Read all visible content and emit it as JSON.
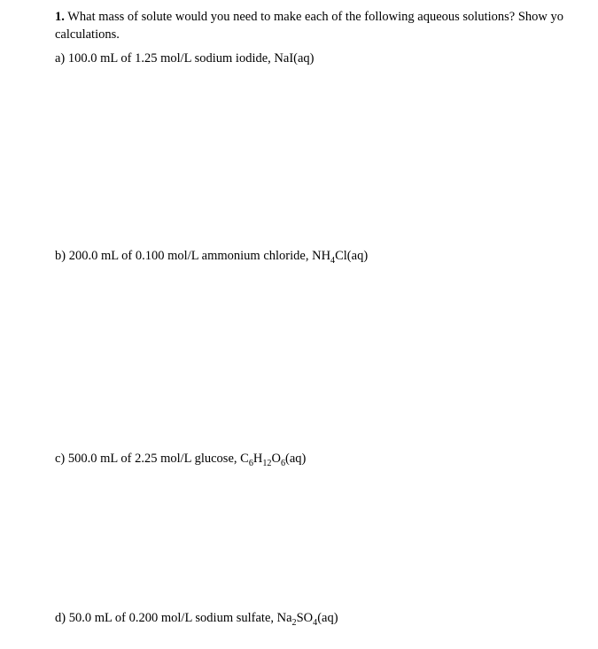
{
  "question": {
    "number": "1.",
    "intro_line1": "What mass of solute would you need to make each of the following aqueous solutions? Show yo",
    "intro_line2": "calculations."
  },
  "parts": {
    "a": {
      "label": "a) 100.0 mL of 1.25 mol/L sodium iodide, NaI(aq)"
    },
    "b": {
      "prefix": "b) 200.0 mL of 0.100 mol/L ammonium chloride, NH",
      "sub1": "4",
      "suffix": "Cl(aq)"
    },
    "c": {
      "prefix": "c) 500.0 mL of 2.25 mol/L glucose, C",
      "sub1": "6",
      "mid1": "H",
      "sub2": "12",
      "mid2": "O",
      "sub3": "6",
      "suffix": "(aq)"
    },
    "d": {
      "prefix": "d) 50.0 mL of 0.200 mol/L sodium sulfate, Na",
      "sub1": "2",
      "mid1": "SO",
      "sub2": "4",
      "suffix": "(aq)"
    }
  }
}
